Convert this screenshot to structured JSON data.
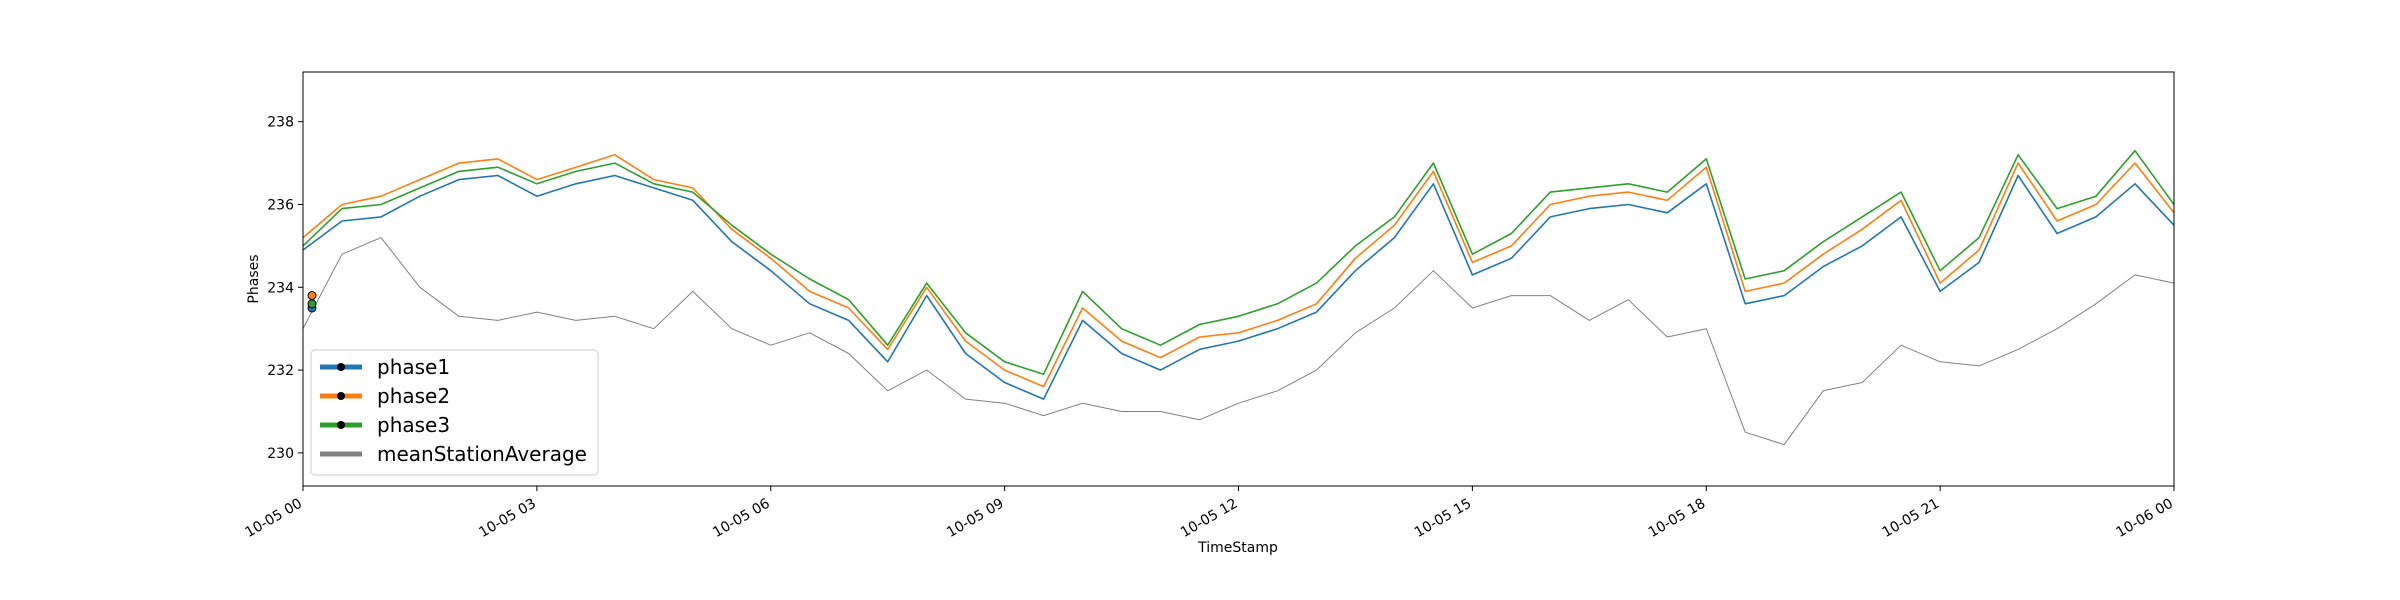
{
  "chart_data": {
    "type": "line",
    "title": "",
    "xlabel": "TimeStamp",
    "ylabel": "Phases",
    "xlim": [
      "2023-10-05 00:00",
      "2023-10-06 00:00"
    ],
    "ylim": [
      229.2,
      239.2
    ],
    "grid": false,
    "legend": "lower-left",
    "x_ticks": [
      {
        "t": 0,
        "label": "10-05 00"
      },
      {
        "t": 3,
        "label": "10-05 03"
      },
      {
        "t": 6,
        "label": "10-05 06"
      },
      {
        "t": 9,
        "label": "10-05 09"
      },
      {
        "t": 12,
        "label": "10-05 12"
      },
      {
        "t": 15,
        "label": "10-05 15"
      },
      {
        "t": 18,
        "label": "10-05 18"
      },
      {
        "t": 21,
        "label": "10-05 21"
      },
      {
        "t": 24,
        "label": "10-06 00"
      }
    ],
    "y_ticks": [
      230,
      232,
      234,
      236,
      238
    ],
    "x": [
      0,
      0.5,
      1,
      1.5,
      2,
      2.5,
      3,
      3.5,
      4,
      4.5,
      5,
      5.5,
      6,
      6.5,
      7,
      7.5,
      8,
      8.5,
      9,
      9.5,
      10,
      10.5,
      11,
      11.5,
      12,
      12.5,
      13,
      13.5,
      14,
      14.5,
      15,
      15.5,
      16,
      16.5,
      17,
      17.5,
      18,
      18.5,
      19,
      19.5,
      20,
      20.5,
      21,
      21.5,
      22,
      22.5,
      23,
      23.5,
      24
    ],
    "series": [
      {
        "name": "phase1",
        "color": "#1f77b4",
        "values": [
          234.9,
          235.6,
          235.7,
          236.2,
          236.6,
          236.7,
          236.2,
          236.5,
          236.7,
          236.4,
          236.1,
          235.1,
          234.4,
          233.6,
          233.2,
          232.2,
          233.8,
          232.4,
          231.7,
          231.3,
          233.2,
          232.4,
          232.0,
          232.5,
          232.7,
          233.0,
          233.4,
          234.4,
          235.2,
          236.5,
          234.3,
          234.7,
          235.7,
          235.9,
          236.0,
          235.8,
          236.5,
          233.6,
          233.8,
          234.5,
          235.0,
          235.7,
          233.9,
          234.6,
          236.7,
          235.3,
          235.7,
          236.5,
          235.5
        ]
      },
      {
        "name": "phase2",
        "color": "#ff7f0e",
        "values": [
          235.2,
          236.0,
          236.2,
          236.6,
          237.0,
          237.1,
          236.6,
          236.9,
          237.2,
          236.6,
          236.4,
          235.4,
          234.7,
          233.9,
          233.5,
          232.5,
          234.0,
          232.7,
          232.0,
          231.6,
          233.5,
          232.7,
          232.3,
          232.8,
          232.9,
          233.2,
          233.6,
          234.7,
          235.5,
          236.8,
          234.6,
          235.0,
          236.0,
          236.2,
          236.3,
          236.1,
          236.9,
          233.9,
          234.1,
          234.8,
          235.4,
          236.1,
          234.1,
          234.9,
          237.0,
          235.6,
          236.0,
          237.0,
          235.8
        ]
      },
      {
        "name": "phase3",
        "color": "#2ca02c",
        "values": [
          235.0,
          235.9,
          236.0,
          236.4,
          236.8,
          236.9,
          236.5,
          236.8,
          237.0,
          236.5,
          236.3,
          235.5,
          234.8,
          234.2,
          233.7,
          232.6,
          234.1,
          232.9,
          232.2,
          231.9,
          233.9,
          233.0,
          232.6,
          233.1,
          233.3,
          233.6,
          234.1,
          235.0,
          235.7,
          237.0,
          234.8,
          235.3,
          236.3,
          236.4,
          236.5,
          236.3,
          237.1,
          234.2,
          234.4,
          235.1,
          235.7,
          236.3,
          234.4,
          235.2,
          237.2,
          235.9,
          236.2,
          237.3,
          236.0
        ]
      },
      {
        "name": "meanStationAverage",
        "color": "#808080",
        "values": [
          233.0,
          234.8,
          235.2,
          234.0,
          233.3,
          233.2,
          233.4,
          233.2,
          233.3,
          233.0,
          233.9,
          233.0,
          232.6,
          232.9,
          232.4,
          231.5,
          232.0,
          231.3,
          231.2,
          230.9,
          231.2,
          231.0,
          231.0,
          230.8,
          231.2,
          231.5,
          232.0,
          232.9,
          233.5,
          234.4,
          233.5,
          233.8,
          233.8,
          233.2,
          233.7,
          232.8,
          233.0,
          230.5,
          230.2,
          231.5,
          231.7,
          232.6,
          232.2,
          232.1,
          232.5,
          233.0,
          233.6,
          234.3,
          234.1
        ]
      }
    ]
  }
}
